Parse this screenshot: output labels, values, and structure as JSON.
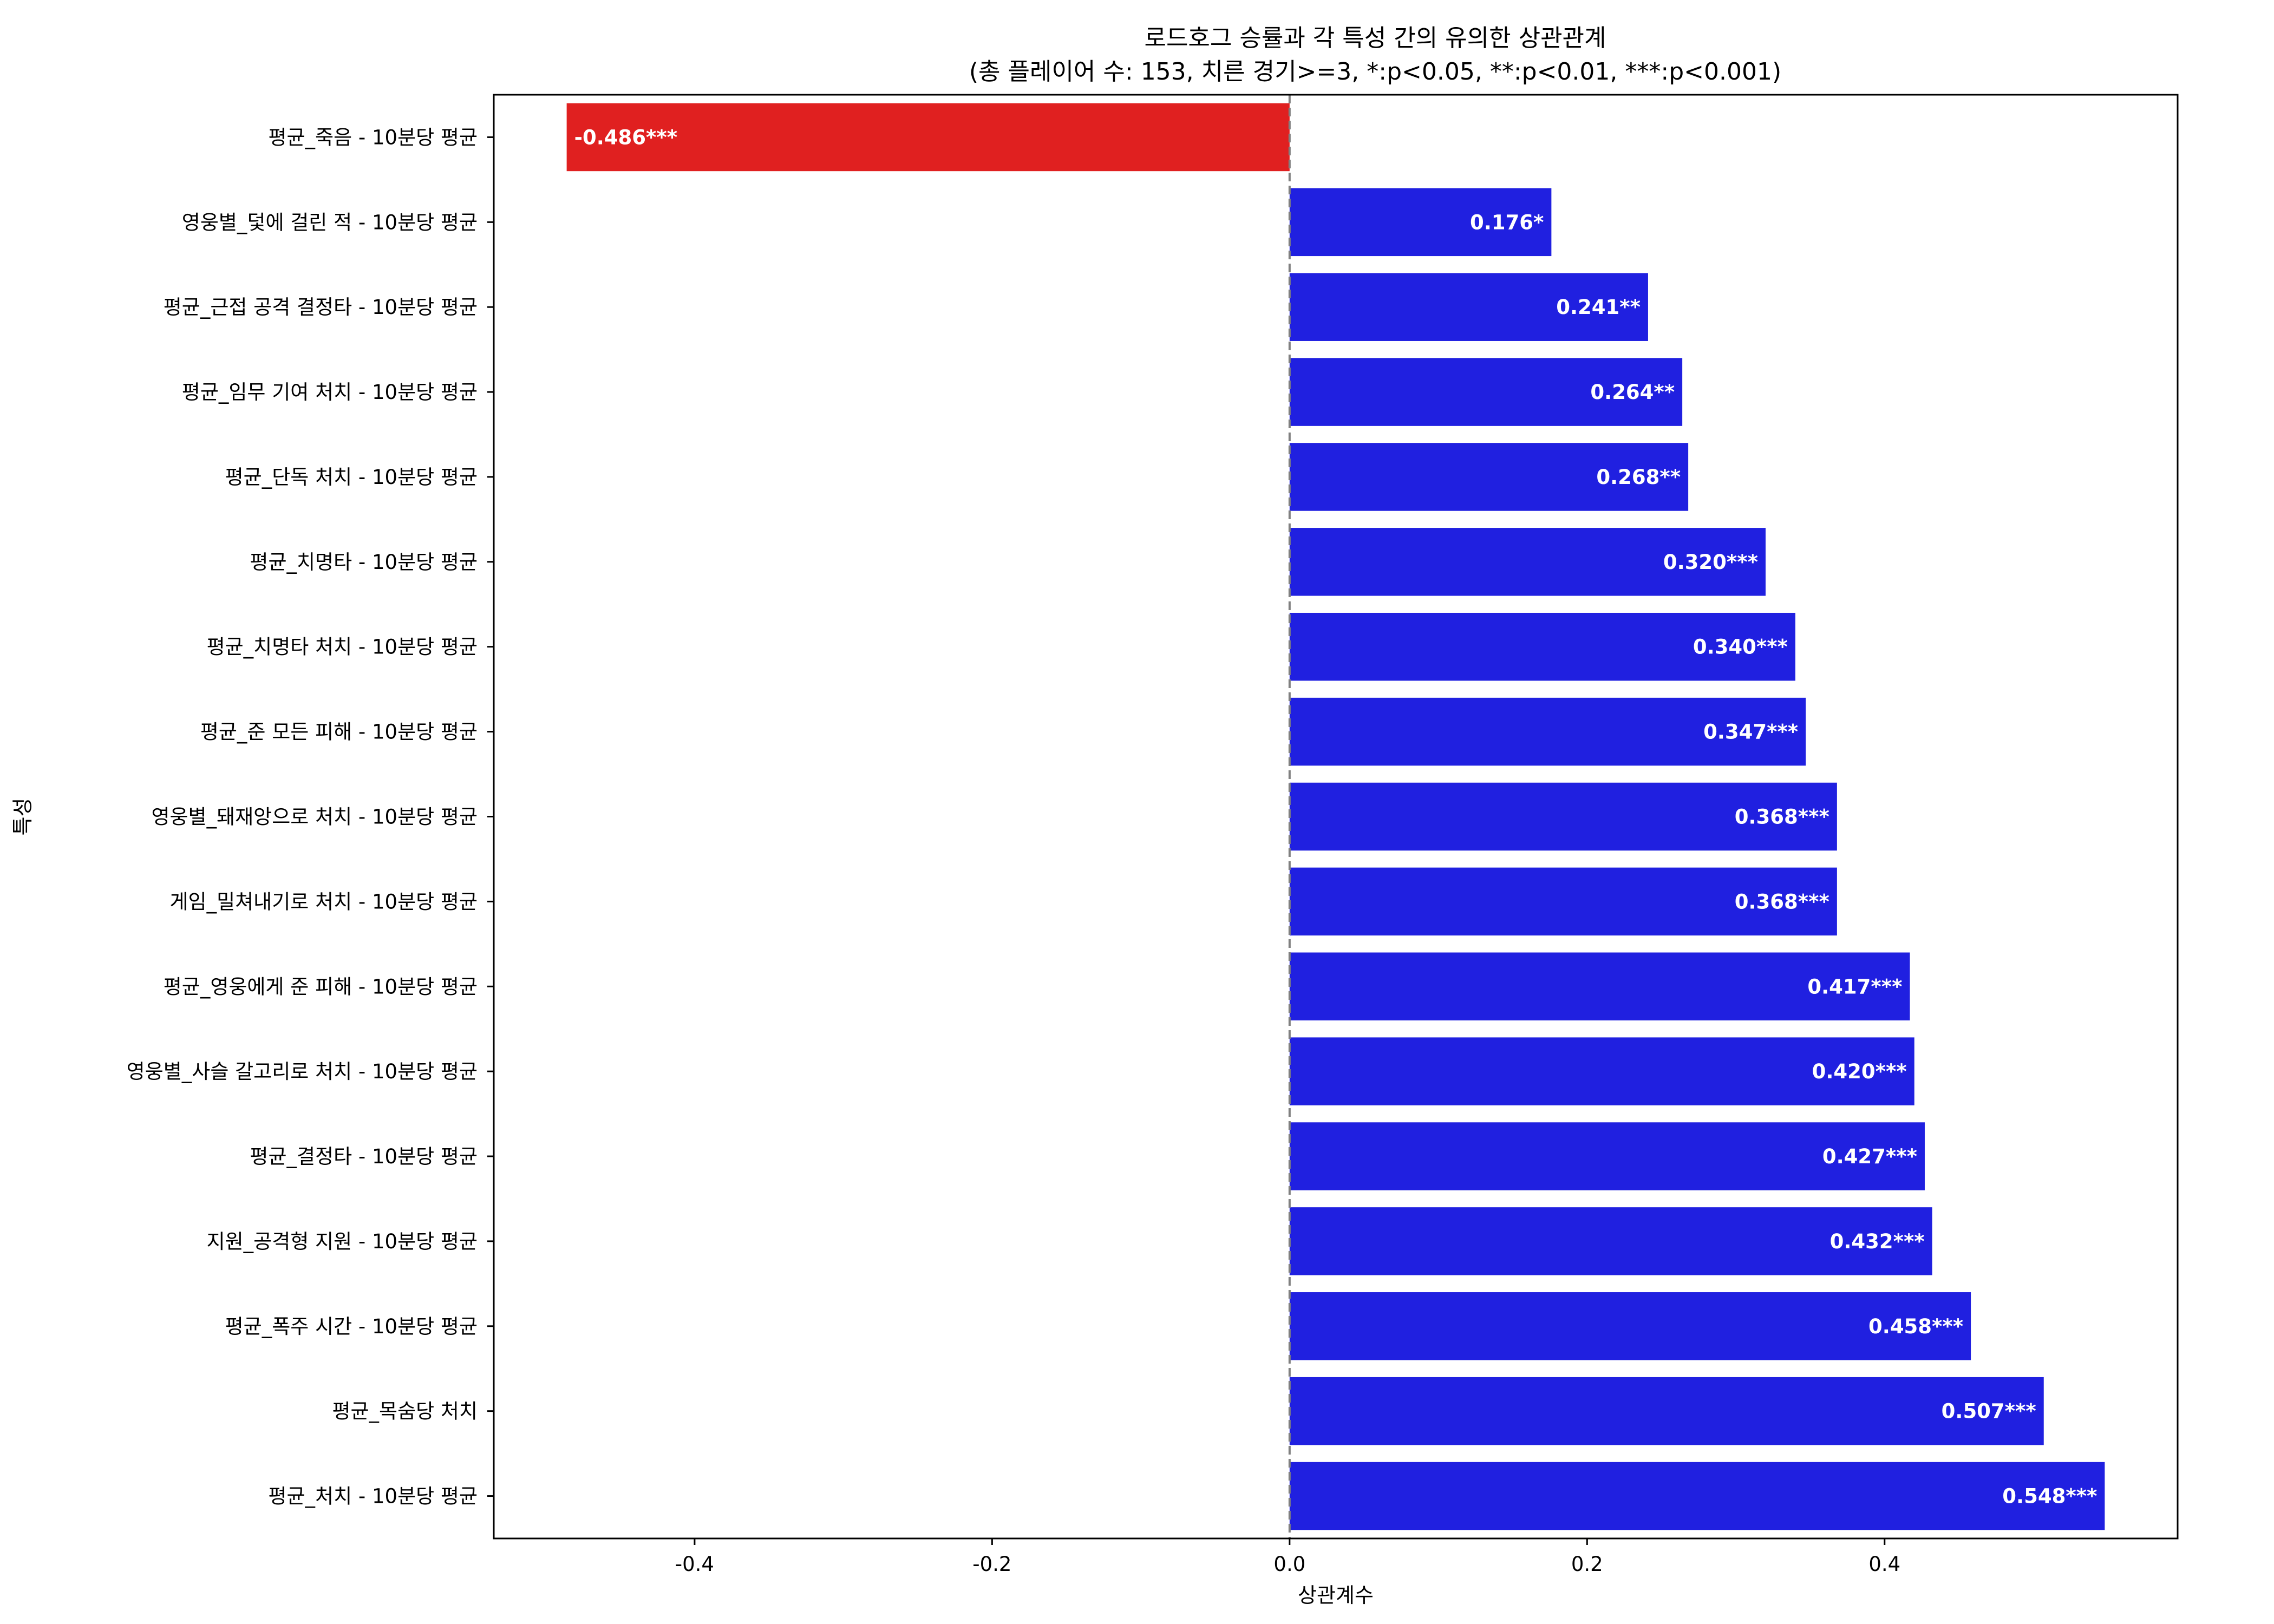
{
  "chart_data": {
    "type": "bar",
    "orientation": "horizontal",
    "title": "로드호그 승률과 각 특성 간의 유의한 상관관계",
    "subtitle": "(총 플레이어 수: 153, 치른 경기>=3, *:p<0.05, **:p<0.01, ***:p<0.001)",
    "xlabel": "상관계수",
    "ylabel": "특성",
    "xlim": [
      -0.535,
      0.597
    ],
    "xticks": [
      -0.4,
      -0.2,
      0.0,
      0.2,
      0.4
    ],
    "xtick_labels": [
      "-0.4",
      "-0.2",
      "0.0",
      "0.2",
      "0.4"
    ],
    "zero_line": "dashed",
    "grid": false,
    "legend": "none",
    "colors": {
      "positive": "#2020e0",
      "negative": "#e02020",
      "zero_line": "#808080",
      "axes": "#000000",
      "bar_label": "#ffffff"
    },
    "categories": [
      "평균_죽음 - 10분당 평균",
      "영웅별_덫에 걸린 적 - 10분당 평균",
      "평균_근접 공격 결정타 - 10분당 평균",
      "평균_임무 기여 처치 - 10분당 평균",
      "평균_단독 처치 - 10분당 평균",
      "평균_치명타 - 10분당 평균",
      "평균_치명타 처치 - 10분당 평균",
      "평균_준 모든 피해 - 10분당 평균",
      "영웅별_돼재앙으로 처치 - 10분당 평균",
      "게임_밀쳐내기로 처치 - 10분당 평균",
      "평균_영웅에게 준 피해 - 10분당 평균",
      "영웅별_사슬 갈고리로 처치 - 10분당 평균",
      "평균_결정타 - 10분당 평균",
      "지원_공격형 지원 - 10분당 평균",
      "평균_폭주 시간 - 10분당 평균",
      "평균_목숨당 처치",
      "평균_처치 - 10분당 평균"
    ],
    "values": [
      -0.486,
      0.176,
      0.241,
      0.264,
      0.268,
      0.32,
      0.34,
      0.347,
      0.368,
      0.368,
      0.417,
      0.42,
      0.427,
      0.432,
      0.458,
      0.507,
      0.548
    ],
    "labels": [
      "-0.486***",
      "0.176*",
      "0.241**",
      "0.264**",
      "0.268**",
      "0.320***",
      "0.340***",
      "0.347***",
      "0.368***",
      "0.368***",
      "0.417***",
      "0.420***",
      "0.427***",
      "0.432***",
      "0.458***",
      "0.507***",
      "0.548***"
    ]
  }
}
